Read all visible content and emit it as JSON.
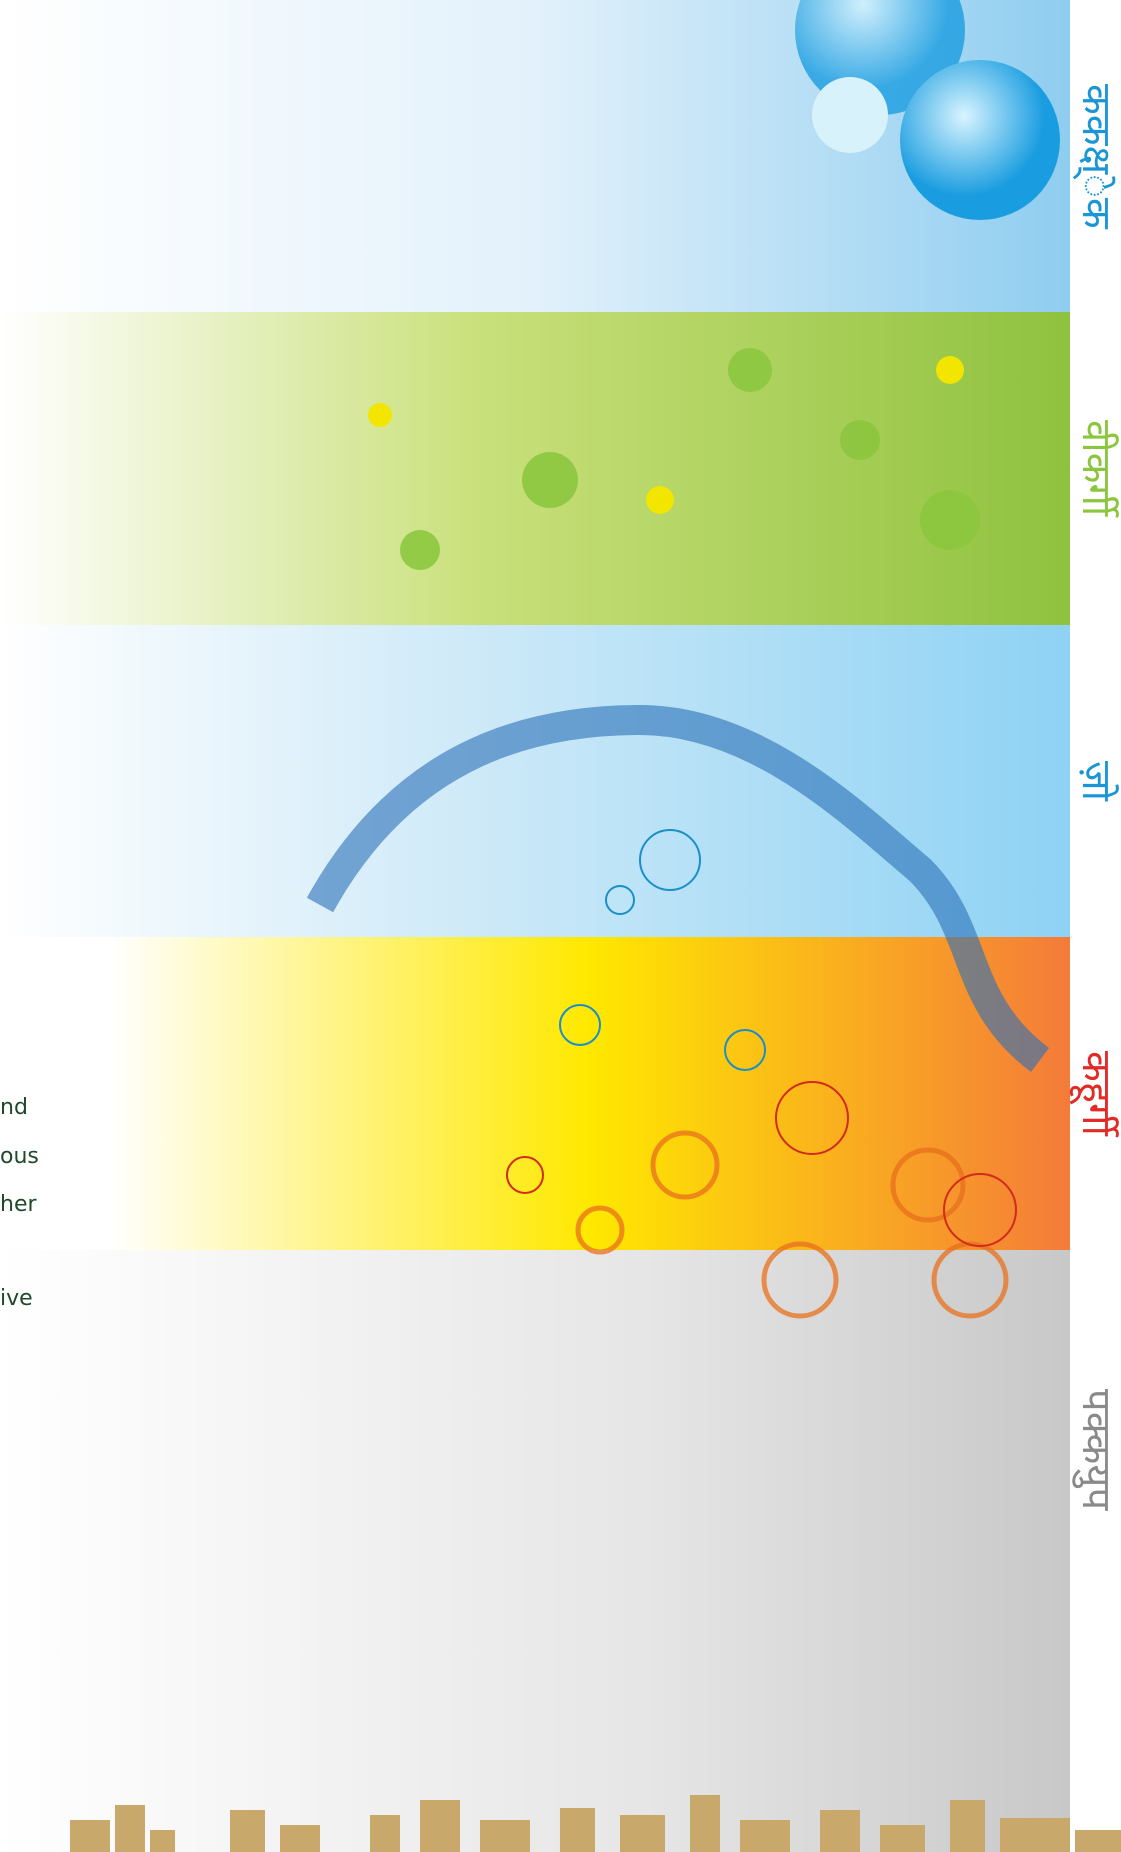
{
  "bands": [
    {
      "label": "ककक्ष्ेक"
    },
    {
      "label": "वीकर्गी"
    },
    {
      "label": "ज़ो"
    },
    {
      "label": "कहूर्गी"
    },
    {
      "label": "पक्कयुप"
    }
  ],
  "side_text": [
    "nd",
    "ous",
    "her",
    "ive"
  ]
}
